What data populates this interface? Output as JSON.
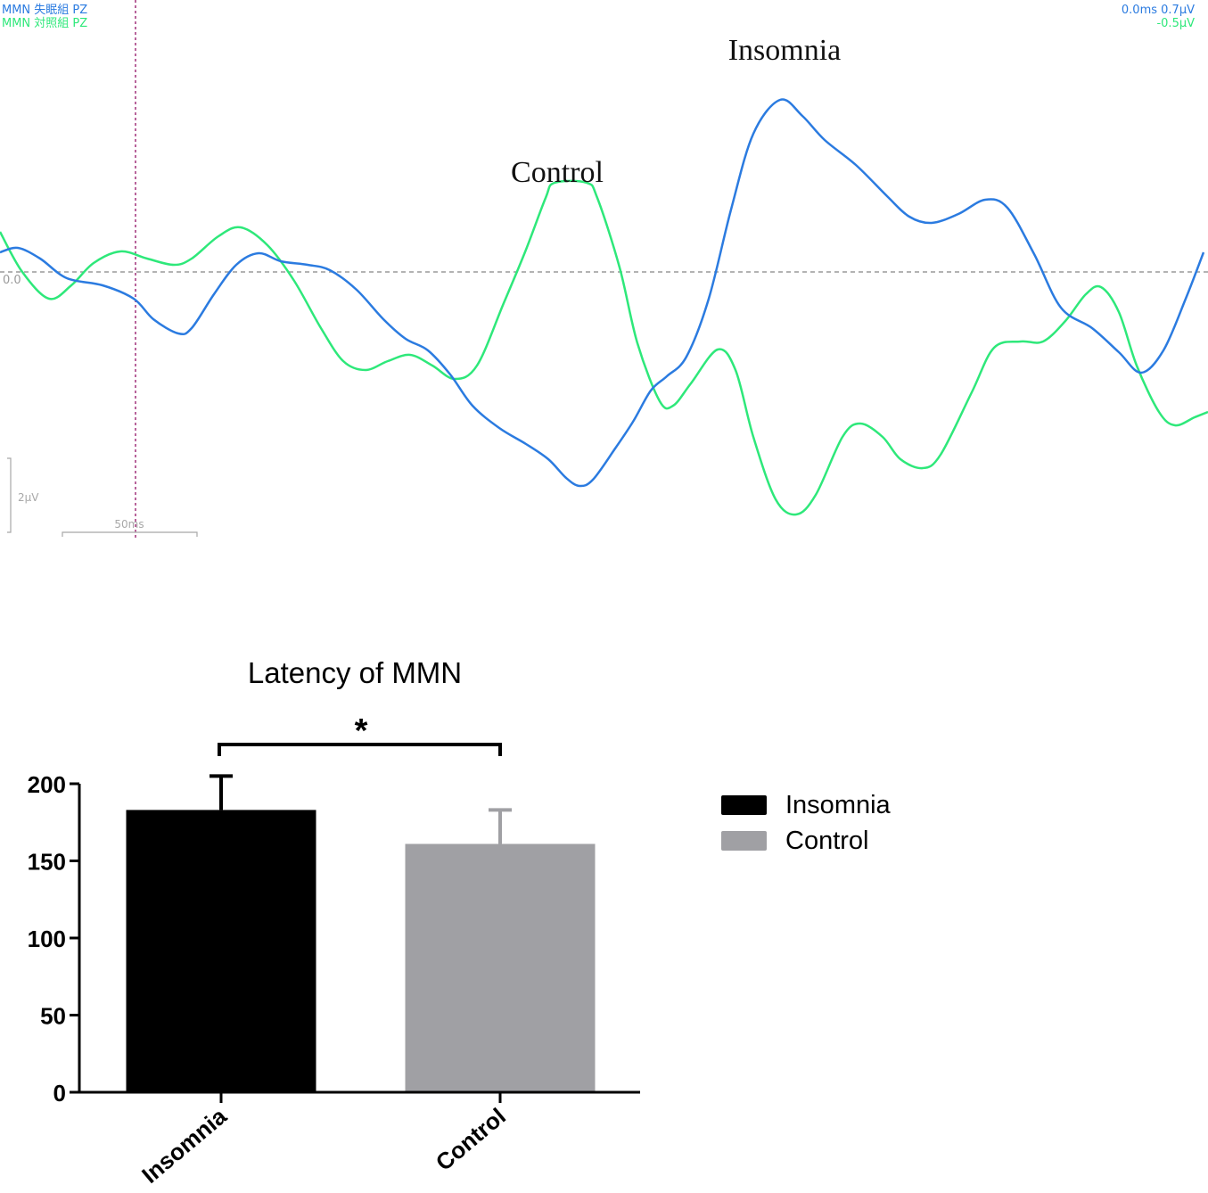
{
  "erp": {
    "channel_labels": [
      "MMN 失眠組 PZ",
      "MMN 対照組 PZ"
    ],
    "readouts": [
      "0.0ms 0.7μV",
      "-0.5μV"
    ],
    "baseline_label": "0.0",
    "scale_amplitude_label": "2μV",
    "scale_time_label": "50ms",
    "annotations": {
      "insomnia": "Insomnia",
      "control": "Control"
    },
    "colors": {
      "insomnia": "#2b7be0",
      "control": "#2ee87a",
      "cursor": "#a0307a",
      "baseline": "#9a9a9a",
      "scale": "#a8a8a8"
    },
    "traces": {
      "insomnia": [
        [
          0,
          283
        ],
        [
          20,
          278
        ],
        [
          45,
          290
        ],
        [
          75,
          312
        ],
        [
          115,
          320
        ],
        [
          150,
          335
        ],
        [
          172,
          358
        ],
        [
          200,
          374
        ],
        [
          215,
          368
        ],
        [
          240,
          330
        ],
        [
          265,
          297
        ],
        [
          290,
          284
        ],
        [
          315,
          293
        ],
        [
          345,
          297
        ],
        [
          370,
          303
        ],
        [
          400,
          325
        ],
        [
          430,
          358
        ],
        [
          455,
          380
        ],
        [
          480,
          393
        ],
        [
          505,
          420
        ],
        [
          530,
          455
        ],
        [
          560,
          480
        ],
        [
          590,
          498
        ],
        [
          615,
          515
        ],
        [
          635,
          536
        ],
        [
          650,
          545
        ],
        [
          665,
          538
        ],
        [
          690,
          503
        ],
        [
          710,
          473
        ],
        [
          730,
          438
        ],
        [
          748,
          422
        ],
        [
          770,
          400
        ],
        [
          795,
          335
        ],
        [
          820,
          235
        ],
        [
          845,
          150
        ],
        [
          875,
          112
        ],
        [
          900,
          130
        ],
        [
          925,
          157
        ],
        [
          960,
          185
        ],
        [
          995,
          220
        ],
        [
          1020,
          243
        ],
        [
          1045,
          250
        ],
        [
          1075,
          240
        ],
        [
          1105,
          224
        ],
        [
          1130,
          233
        ],
        [
          1160,
          285
        ],
        [
          1190,
          345
        ],
        [
          1225,
          368
        ],
        [
          1255,
          395
        ],
        [
          1280,
          418
        ],
        [
          1305,
          393
        ],
        [
          1330,
          335
        ],
        [
          1350,
          283
        ]
      ],
      "control": [
        [
          0,
          260
        ],
        [
          25,
          305
        ],
        [
          55,
          335
        ],
        [
          80,
          320
        ],
        [
          105,
          295
        ],
        [
          135,
          282
        ],
        [
          165,
          290
        ],
        [
          195,
          297
        ],
        [
          215,
          290
        ],
        [
          245,
          265
        ],
        [
          270,
          255
        ],
        [
          300,
          275
        ],
        [
          330,
          315
        ],
        [
          360,
          368
        ],
        [
          385,
          405
        ],
        [
          410,
          415
        ],
        [
          435,
          405
        ],
        [
          460,
          398
        ],
        [
          485,
          410
        ],
        [
          510,
          425
        ],
        [
          535,
          410
        ],
        [
          565,
          340
        ],
        [
          590,
          280
        ],
        [
          612,
          222
        ],
        [
          622,
          205
        ],
        [
          658,
          205
        ],
        [
          670,
          222
        ],
        [
          695,
          300
        ],
        [
          715,
          385
        ],
        [
          740,
          450
        ],
        [
          755,
          455
        ],
        [
          775,
          430
        ],
        [
          805,
          392
        ],
        [
          825,
          415
        ],
        [
          845,
          490
        ],
        [
          870,
          560
        ],
        [
          893,
          577
        ],
        [
          915,
          555
        ],
        [
          945,
          490
        ],
        [
          965,
          475
        ],
        [
          990,
          490
        ],
        [
          1010,
          515
        ],
        [
          1035,
          525
        ],
        [
          1055,
          510
        ],
        [
          1090,
          440
        ],
        [
          1115,
          390
        ],
        [
          1145,
          383
        ],
        [
          1170,
          383
        ],
        [
          1195,
          360
        ],
        [
          1218,
          330
        ],
        [
          1235,
          322
        ],
        [
          1255,
          350
        ],
        [
          1275,
          410
        ],
        [
          1300,
          462
        ],
        [
          1318,
          477
        ],
        [
          1340,
          468
        ],
        [
          1355,
          462
        ]
      ]
    }
  },
  "bar_chart": {
    "title": "Latency of MMN",
    "significance": "*",
    "legend": [
      "Insomnia",
      "Control"
    ]
  },
  "chart_data": {
    "type": "bar",
    "title": "Latency of MMN",
    "categories": [
      "Insomnia",
      "Control"
    ],
    "values": [
      183,
      161
    ],
    "error": [
      22,
      22
    ],
    "colors": [
      "#000000",
      "#a0a0a4"
    ],
    "ylim": [
      0,
      200
    ],
    "yticks": [
      0,
      50,
      100,
      150,
      200
    ],
    "xlabel": "",
    "ylabel": "",
    "legend_position": "right",
    "significance": "*"
  }
}
